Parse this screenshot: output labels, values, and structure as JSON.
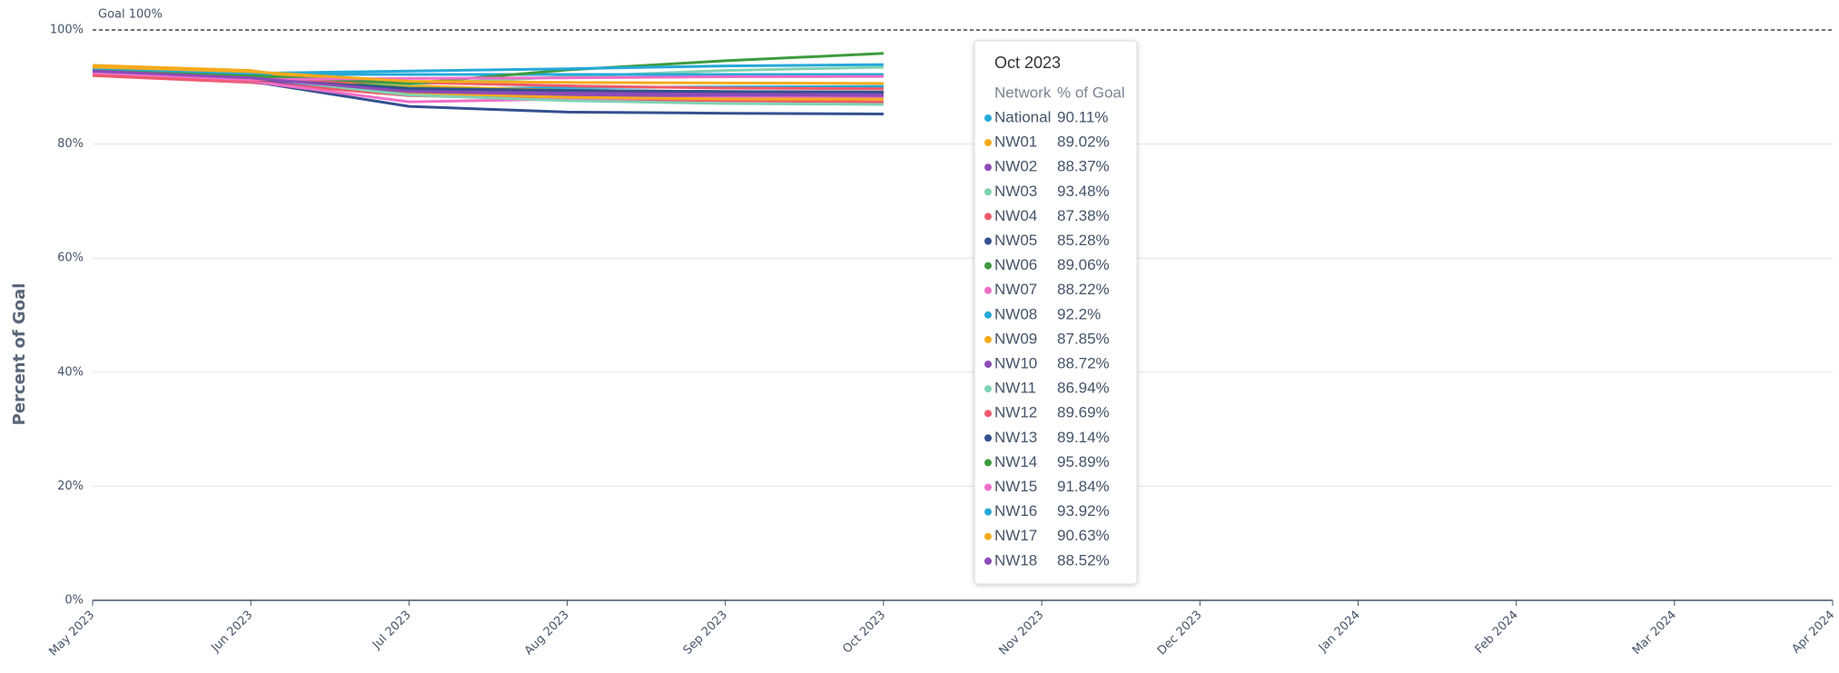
{
  "chart_data": {
    "type": "line",
    "y_axis_label": "Percent of Goal",
    "goal": {
      "value": 100,
      "label": "Goal 100%"
    },
    "categories": [
      "May 2023",
      "Jun 2023",
      "Jul 2023",
      "Aug 2023",
      "Sep 2023",
      "Oct 2023",
      "Nov 2023",
      "Dec 2023",
      "Jan 2024",
      "Feb 2024",
      "Mar 2024",
      "Apr 2024"
    ],
    "ylim": [
      0,
      100
    ],
    "yticks": [
      {
        "value": 0,
        "label": "0%"
      },
      {
        "value": 20,
        "label": "20%"
      },
      {
        "value": 40,
        "label": "40%"
      },
      {
        "value": 60,
        "label": "60%"
      },
      {
        "value": 80,
        "label": "80%"
      },
      {
        "value": 100,
        "label": "100%"
      }
    ],
    "grid": true,
    "tooltip_columns": [
      "Network",
      "% of Goal"
    ],
    "tooltip_category_index": 5,
    "series": [
      {
        "name": "National",
        "color": "#26a9d9",
        "values": [
          92.8,
          91.6,
          89.6,
          89.9,
          90.0,
          90.11,
          null,
          null,
          null,
          null,
          null,
          null
        ],
        "value_labels": [
          null,
          null,
          null,
          null,
          null,
          "90.11%",
          null,
          null,
          null,
          null,
          null,
          null
        ]
      },
      {
        "name": "NW01",
        "color": "#f5ab1e",
        "values": [
          93.6,
          92.6,
          90.2,
          89.4,
          89.1,
          89.02,
          null,
          null,
          null,
          null,
          null,
          null
        ],
        "value_labels": [
          null,
          null,
          null,
          null,
          null,
          "89.02%",
          null,
          null,
          null,
          null,
          null,
          null
        ]
      },
      {
        "name": "NW02",
        "color": "#8c4bb6",
        "values": [
          92.5,
          91.2,
          88.8,
          88.5,
          88.4,
          88.37,
          null,
          null,
          null,
          null,
          null,
          null
        ],
        "value_labels": [
          null,
          null,
          null,
          null,
          null,
          "88.37%",
          null,
          null,
          null,
          null,
          null,
          null
        ]
      },
      {
        "name": "NW03",
        "color": "#7fd3b3",
        "values": [
          93.0,
          91.8,
          90.5,
          91.8,
          92.9,
          93.48,
          null,
          null,
          null,
          null,
          null,
          null
        ],
        "value_labels": [
          null,
          null,
          null,
          null,
          null,
          "93.48%",
          null,
          null,
          null,
          null,
          null,
          null
        ]
      },
      {
        "name": "NW04",
        "color": "#ef5a6a",
        "values": [
          92.0,
          90.8,
          88.5,
          87.9,
          87.6,
          87.38,
          null,
          null,
          null,
          null,
          null,
          null
        ],
        "value_labels": [
          null,
          null,
          null,
          null,
          null,
          "87.38%",
          null,
          null,
          null,
          null,
          null,
          null
        ]
      },
      {
        "name": "NW05",
        "color": "#34508f",
        "values": [
          92.6,
          91.0,
          86.6,
          85.6,
          85.4,
          85.28,
          null,
          null,
          null,
          null,
          null,
          null
        ],
        "value_labels": [
          null,
          null,
          null,
          null,
          null,
          "85.28%",
          null,
          null,
          null,
          null,
          null,
          null
        ]
      },
      {
        "name": "NW06",
        "color": "#3d9b3d",
        "values": [
          93.2,
          91.9,
          89.8,
          89.4,
          89.2,
          89.06,
          null,
          null,
          null,
          null,
          null,
          null
        ],
        "value_labels": [
          null,
          null,
          null,
          null,
          null,
          "89.06%",
          null,
          null,
          null,
          null,
          null,
          null
        ]
      },
      {
        "name": "NW07",
        "color": "#ef6ec8",
        "values": [
          92.4,
          91.0,
          87.4,
          87.9,
          88.1,
          88.22,
          null,
          null,
          null,
          null,
          null,
          null
        ],
        "value_labels": [
          null,
          null,
          null,
          null,
          null,
          "88.22%",
          null,
          null,
          null,
          null,
          null,
          null
        ]
      },
      {
        "name": "NW08",
        "color": "#26a9d9",
        "values": [
          93.1,
          92.2,
          92.2,
          92.2,
          92.2,
          92.2,
          null,
          null,
          null,
          null,
          null,
          null
        ],
        "value_labels": [
          null,
          null,
          null,
          null,
          null,
          "92.2%",
          null,
          null,
          null,
          null,
          null,
          null
        ]
      },
      {
        "name": "NW09",
        "color": "#f5ab1e",
        "values": [
          93.8,
          92.9,
          89.0,
          88.2,
          87.9,
          87.85,
          null,
          null,
          null,
          null,
          null,
          null
        ],
        "value_labels": [
          null,
          null,
          null,
          null,
          null,
          "87.85%",
          null,
          null,
          null,
          null,
          null,
          null
        ]
      },
      {
        "name": "NW10",
        "color": "#8c4bb6",
        "values": [
          92.7,
          91.5,
          89.5,
          89.0,
          88.8,
          88.72,
          null,
          null,
          null,
          null,
          null,
          null
        ],
        "value_labels": [
          null,
          null,
          null,
          null,
          null,
          "88.72%",
          null,
          null,
          null,
          null,
          null,
          null
        ]
      },
      {
        "name": "NW11",
        "color": "#7fd3b3",
        "values": [
          92.9,
          91.7,
          88.6,
          87.6,
          87.1,
          86.94,
          null,
          null,
          null,
          null,
          null,
          null
        ],
        "value_labels": [
          null,
          null,
          null,
          null,
          null,
          "86.94%",
          null,
          null,
          null,
          null,
          null,
          null
        ]
      },
      {
        "name": "NW12",
        "color": "#ef5a6a",
        "values": [
          92.3,
          91.1,
          90.8,
          90.2,
          89.8,
          89.69,
          null,
          null,
          null,
          null,
          null,
          null
        ],
        "value_labels": [
          null,
          null,
          null,
          null,
          null,
          "89.69%",
          null,
          null,
          null,
          null,
          null,
          null
        ]
      },
      {
        "name": "NW13",
        "color": "#34508f",
        "values": [
          92.6,
          91.4,
          89.7,
          89.4,
          89.2,
          89.14,
          null,
          null,
          null,
          null,
          null,
          null
        ],
        "value_labels": [
          null,
          null,
          null,
          null,
          null,
          "89.14%",
          null,
          null,
          null,
          null,
          null,
          null
        ]
      },
      {
        "name": "NW14",
        "color": "#3d9b3d",
        "values": [
          93.0,
          92.0,
          90.6,
          93.0,
          94.6,
          95.89,
          null,
          null,
          null,
          null,
          null,
          null
        ],
        "value_labels": [
          null,
          null,
          null,
          null,
          null,
          "95.89%",
          null,
          null,
          null,
          null,
          null,
          null
        ]
      },
      {
        "name": "NW15",
        "color": "#ef6ec8",
        "values": [
          92.5,
          91.3,
          91.5,
          91.6,
          91.8,
          91.84,
          null,
          null,
          null,
          null,
          null,
          null
        ],
        "value_labels": [
          null,
          null,
          null,
          null,
          null,
          "91.84%",
          null,
          null,
          null,
          null,
          null,
          null
        ]
      },
      {
        "name": "NW16",
        "color": "#26a9d9",
        "values": [
          93.3,
          92.4,
          92.8,
          93.2,
          93.7,
          93.92,
          null,
          null,
          null,
          null,
          null,
          null
        ],
        "value_labels": [
          null,
          null,
          null,
          null,
          null,
          "93.92%",
          null,
          null,
          null,
          null,
          null,
          null
        ]
      },
      {
        "name": "NW17",
        "color": "#f5ab1e",
        "values": [
          93.5,
          92.7,
          91.0,
          90.8,
          90.7,
          90.63,
          null,
          null,
          null,
          null,
          null,
          null
        ],
        "value_labels": [
          null,
          null,
          null,
          null,
          null,
          "90.63%",
          null,
          null,
          null,
          null,
          null,
          null
        ]
      },
      {
        "name": "NW18",
        "color": "#8c4bb6",
        "values": [
          92.8,
          91.6,
          89.2,
          88.7,
          88.6,
          88.52,
          null,
          null,
          null,
          null,
          null,
          null
        ],
        "value_labels": [
          null,
          null,
          null,
          null,
          null,
          "88.52%",
          null,
          null,
          null,
          null,
          null,
          null
        ]
      }
    ]
  }
}
